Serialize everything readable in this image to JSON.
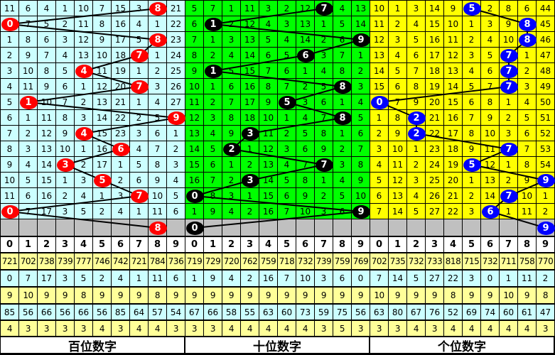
{
  "colors": {
    "panel_bg": [
      "#ccffff",
      "#00ff00",
      "#ffff00"
    ],
    "ball": [
      "#ff0000",
      "#000000",
      "#0000ff"
    ],
    "gray_row": "#c0c0c0",
    "stat_yellow": "#ffff99",
    "stat_cyan": "#ccffff"
  },
  "panels": [
    {
      "title": "百位数字",
      "header": [
        "0",
        "1",
        "2",
        "3",
        "4",
        "5",
        "6",
        "7",
        "8",
        "9"
      ],
      "rows": [
        [
          11,
          6,
          4,
          1,
          10,
          7,
          15,
          3,
          8,
          21
        ],
        [
          0,
          7,
          5,
          2,
          11,
          8,
          16,
          4,
          1,
          22
        ],
        [
          1,
          8,
          6,
          3,
          12,
          9,
          17,
          5,
          8,
          23
        ],
        [
          2,
          9,
          7,
          4,
          13,
          10,
          18,
          7,
          1,
          24
        ],
        [
          3,
          10,
          8,
          5,
          4,
          11,
          19,
          1,
          2,
          25
        ],
        [
          4,
          11,
          9,
          6,
          1,
          12,
          20,
          7,
          3,
          26
        ],
        [
          5,
          1,
          10,
          7,
          2,
          13,
          21,
          1,
          4,
          27
        ],
        [
          6,
          1,
          11,
          8,
          3,
          14,
          22,
          2,
          5,
          9
        ],
        [
          7,
          2,
          12,
          9,
          4,
          15,
          23,
          3,
          6,
          1
        ],
        [
          8,
          3,
          13,
          10,
          1,
          16,
          6,
          4,
          7,
          2
        ],
        [
          9,
          4,
          14,
          3,
          2,
          17,
          1,
          5,
          8,
          3
        ],
        [
          10,
          5,
          15,
          1,
          3,
          5,
          2,
          6,
          9,
          4
        ],
        [
          11,
          6,
          16,
          2,
          4,
          1,
          3,
          7,
          10,
          5
        ],
        [
          0,
          7,
          17,
          3,
          5,
          2,
          4,
          1,
          11,
          6
        ]
      ],
      "balls": [
        8,
        0,
        8,
        7,
        4,
        7,
        1,
        9,
        4,
        6,
        3,
        5,
        7,
        0
      ],
      "next_ball": 8,
      "stats": [
        [
          721,
          702,
          738,
          739,
          777,
          746,
          742,
          721,
          784,
          736
        ],
        [
          0,
          7,
          17,
          3,
          5,
          2,
          4,
          1,
          11,
          6
        ],
        [
          9,
          10,
          9,
          9,
          8,
          9,
          9,
          9,
          8,
          9
        ],
        [
          85,
          56,
          66,
          56,
          66,
          56,
          85,
          64,
          57,
          54
        ],
        [
          4,
          3,
          3,
          3,
          3,
          4,
          3,
          4,
          4,
          3
        ]
      ]
    },
    {
      "title": "十位数字",
      "header": [
        "0",
        "1",
        "2",
        "3",
        "4",
        "5",
        "6",
        "7",
        "8",
        "9"
      ],
      "rows": [
        [
          5,
          7,
          1,
          11,
          3,
          2,
          12,
          7,
          4,
          13
        ],
        [
          6,
          1,
          2,
          12,
          4,
          3,
          13,
          1,
          5,
          14
        ],
        [
          7,
          1,
          3,
          13,
          5,
          4,
          14,
          2,
          6,
          9
        ],
        [
          8,
          2,
          4,
          14,
          6,
          5,
          6,
          3,
          7,
          1
        ],
        [
          9,
          1,
          5,
          15,
          7,
          6,
          1,
          4,
          8,
          2
        ],
        [
          10,
          1,
          6,
          16,
          8,
          7,
          2,
          5,
          8,
          3
        ],
        [
          11,
          2,
          7,
          17,
          9,
          5,
          3,
          6,
          1,
          4
        ],
        [
          12,
          3,
          8,
          18,
          10,
          1,
          4,
          7,
          8,
          5
        ],
        [
          13,
          4,
          9,
          3,
          11,
          2,
          5,
          8,
          1,
          6
        ],
        [
          14,
          5,
          2,
          1,
          12,
          3,
          6,
          9,
          2,
          7
        ],
        [
          15,
          6,
          1,
          2,
          13,
          4,
          7,
          7,
          3,
          8
        ],
        [
          16,
          7,
          2,
          3,
          14,
          5,
          8,
          1,
          4,
          9
        ],
        [
          0,
          8,
          3,
          1,
          15,
          6,
          9,
          2,
          5,
          10
        ],
        [
          1,
          9,
          4,
          2,
          16,
          7,
          10,
          3,
          6,
          9
        ]
      ],
      "balls": [
        7,
        1,
        9,
        6,
        1,
        8,
        5,
        8,
        3,
        2,
        7,
        3,
        0,
        9
      ],
      "next_ball": 0,
      "stats": [
        [
          719,
          729,
          720,
          762,
          759,
          718,
          732,
          739,
          759,
          769
        ],
        [
          1,
          9,
          4,
          2,
          16,
          7,
          10,
          3,
          6,
          0
        ],
        [
          9,
          9,
          9,
          9,
          9,
          9,
          9,
          9,
          9,
          9
        ],
        [
          67,
          66,
          58,
          55,
          63,
          60,
          73,
          59,
          75,
          56
        ],
        [
          3,
          3,
          4,
          4,
          4,
          4,
          4,
          3,
          5,
          3
        ]
      ]
    },
    {
      "title": "个位数字",
      "header": [
        "0",
        "1",
        "2",
        "3",
        "4",
        "5",
        "6",
        "7",
        "8",
        "9"
      ],
      "rows": [
        [
          10,
          1,
          3,
          14,
          9,
          5,
          2,
          8,
          6,
          44
        ],
        [
          11,
          2,
          4,
          15,
          10,
          1,
          3,
          9,
          8,
          45
        ],
        [
          12,
          3,
          5,
          16,
          11,
          2,
          4,
          10,
          8,
          46
        ],
        [
          13,
          4,
          6,
          17,
          12,
          3,
          5,
          7,
          1,
          47
        ],
        [
          14,
          5,
          7,
          18,
          13,
          4,
          6,
          7,
          2,
          48
        ],
        [
          15,
          6,
          8,
          19,
          14,
          5,
          7,
          7,
          3,
          49
        ],
        [
          0,
          7,
          9,
          20,
          15,
          6,
          8,
          1,
          4,
          50
        ],
        [
          1,
          8,
          2,
          21,
          16,
          7,
          9,
          2,
          5,
          51
        ],
        [
          2,
          9,
          2,
          22,
          17,
          8,
          10,
          3,
          6,
          52
        ],
        [
          3,
          10,
          1,
          23,
          18,
          9,
          11,
          7,
          7,
          53
        ],
        [
          4,
          11,
          2,
          24,
          19,
          5,
          12,
          1,
          8,
          54
        ],
        [
          5,
          12,
          3,
          25,
          20,
          1,
          13,
          2,
          9,
          9
        ],
        [
          6,
          13,
          4,
          26,
          21,
          2,
          14,
          7,
          10,
          1
        ],
        [
          7,
          14,
          5,
          27,
          22,
          3,
          6,
          1,
          11,
          2
        ]
      ],
      "balls": [
        5,
        8,
        8,
        7,
        7,
        7,
        0,
        2,
        2,
        7,
        5,
        9,
        7,
        6
      ],
      "next_ball": 9,
      "stats": [
        [
          702,
          735,
          732,
          733,
          818,
          715,
          732,
          711,
          758,
          770
        ],
        [
          7,
          14,
          5,
          27,
          22,
          3,
          0,
          1,
          11,
          2
        ],
        [
          10,
          9,
          9,
          9,
          8,
          9,
          9,
          10,
          9,
          8
        ],
        [
          63,
          80,
          67,
          76,
          52,
          69,
          74,
          60,
          61,
          47
        ],
        [
          3,
          3,
          4,
          3,
          4,
          4,
          4,
          4,
          4,
          3
        ]
      ]
    }
  ]
}
